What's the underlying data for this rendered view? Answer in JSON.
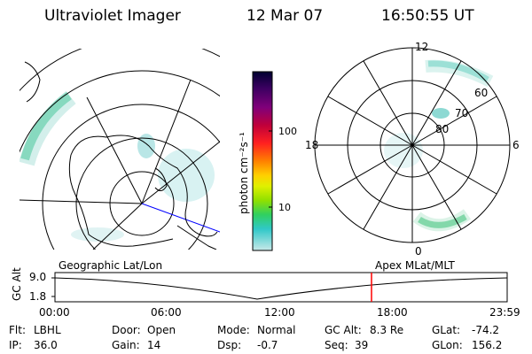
{
  "header": {
    "title": "Ultraviolet Imager",
    "date": "12 Mar 07",
    "time": "16:50:55 UT"
  },
  "left_panel": {
    "caption": "Geographic Lat/Lon"
  },
  "right_panel": {
    "caption": "Apex  MLat/MLT",
    "mlt_labels": {
      "top": "12",
      "left": "18",
      "right": "6",
      "bottom": "0"
    },
    "lat_labels": [
      "80",
      "70",
      "60"
    ]
  },
  "colorbar": {
    "label": "photon cm⁻²s⁻¹",
    "scale": "log",
    "ticks": [
      "100",
      "10"
    ],
    "colors": [
      "#000030",
      "#3a0060",
      "#80007a",
      "#c0003a",
      "#ff2020",
      "#ff8000",
      "#ffd000",
      "#e0f000",
      "#90e000",
      "#30d060",
      "#30c8c8",
      "#c8e8e8"
    ]
  },
  "altitude_plot": {
    "ylabel": "GC Alt",
    "y_ticks": [
      "9.0",
      "1.8"
    ],
    "x_ticks": [
      "00:00",
      "06:00",
      "12:00",
      "18:00",
      "23:59"
    ],
    "current_time_marker": "16:50:55"
  },
  "info": {
    "flt": {
      "label": "Flt:",
      "value": "LBHL"
    },
    "ip": {
      "label": "IP:",
      "value": "36.0"
    },
    "door": {
      "label": "Door:",
      "value": "Open"
    },
    "gain": {
      "label": "Gain:",
      "value": "14"
    },
    "mode": {
      "label": "Mode:",
      "value": "Normal"
    },
    "dsp": {
      "label": "Dsp:",
      "value": "-0.7"
    },
    "gc_alt": {
      "label": "GC Alt:",
      "value": "8.3 Re"
    },
    "seq": {
      "label": "Seq:",
      "value": "39"
    },
    "glat": {
      "label": "GLat:",
      "value": "-74.2"
    },
    "glon": {
      "label": "GLon:",
      "value": "156.2"
    }
  }
}
